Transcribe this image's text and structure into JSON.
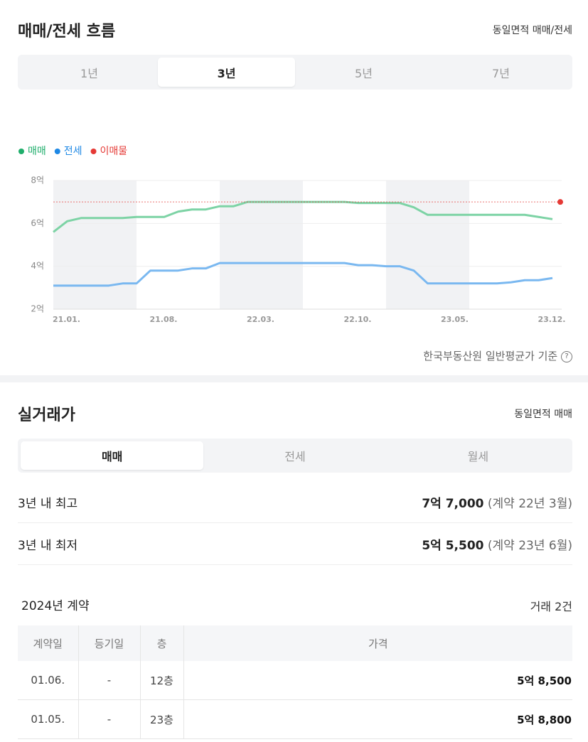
{
  "header": {
    "title": "매매/전세 흐름",
    "link": "동일면적 매매/전세"
  },
  "period_tabs": {
    "items": [
      "1년",
      "3년",
      "5년",
      "7년"
    ],
    "active": 1
  },
  "chart_data": {
    "type": "line",
    "categories": [
      "21.01.",
      null,
      null,
      null,
      null,
      null,
      null,
      "21.08.",
      null,
      null,
      null,
      null,
      null,
      null,
      "22.03.",
      null,
      null,
      null,
      null,
      null,
      null,
      "22.10.",
      null,
      null,
      null,
      null,
      null,
      null,
      "23.05.",
      null,
      null,
      null,
      null,
      null,
      null,
      "23.12.",
      null
    ],
    "series": [
      {
        "name": "매매",
        "color": "#7dd3a5",
        "legend_color": "#1fae6b",
        "values": [
          5.6,
          6.1,
          6.25,
          6.25,
          6.25,
          6.25,
          6.3,
          6.3,
          6.3,
          6.55,
          6.65,
          6.65,
          6.8,
          6.8,
          7.0,
          7.0,
          7.0,
          7.0,
          7.0,
          7.0,
          7.0,
          7.0,
          6.95,
          6.95,
          6.95,
          6.95,
          6.75,
          6.4,
          6.4,
          6.4,
          6.4,
          6.4,
          6.4,
          6.4,
          6.4,
          6.3,
          6.2
        ]
      },
      {
        "name": "전세",
        "color": "#7ab8f0",
        "legend_color": "#1e88e5",
        "values": [
          3.1,
          3.1,
          3.1,
          3.1,
          3.1,
          3.2,
          3.2,
          3.8,
          3.8,
          3.8,
          3.9,
          3.9,
          4.15,
          4.15,
          4.15,
          4.15,
          4.15,
          4.15,
          4.15,
          4.15,
          4.15,
          4.15,
          4.05,
          4.05,
          4.0,
          4.0,
          3.8,
          3.2,
          3.2,
          3.2,
          3.2,
          3.2,
          3.2,
          3.25,
          3.35,
          3.35,
          3.45
        ]
      }
    ],
    "listing": {
      "name": "이매물",
      "color": "#e53935",
      "value": 7.0
    },
    "ylim": [
      2,
      8
    ],
    "yticks": [
      {
        "value": 2,
        "label": "2억"
      },
      {
        "value": 4,
        "label": "4억"
      },
      {
        "value": 6,
        "label": "6억"
      },
      {
        "value": 8,
        "label": "8억"
      }
    ],
    "grid": true
  },
  "source": "한국부동산원 일반평균가 기준",
  "deals": {
    "title": "실거래가",
    "link": "동일면적 매매",
    "tabs": {
      "items": [
        "매매",
        "전세",
        "월세"
      ],
      "active": 0
    },
    "stats": [
      {
        "label": "3년 내 최고",
        "price": "7억 7,000",
        "note": "(계약 22년 3월)"
      },
      {
        "label": "3년 내 최저",
        "price": "5억 5,500",
        "note": "(계약 23년 6월)"
      }
    ],
    "year_title": "2024년 계약",
    "count": "거래 2건",
    "table": {
      "header": [
        "계약일",
        "등기일",
        "층",
        "가격"
      ],
      "rows": [
        [
          "01.06.",
          "-",
          "12층",
          "5억 8,500"
        ],
        [
          "01.05.",
          "-",
          "23층",
          "5억 8,800"
        ]
      ]
    }
  }
}
